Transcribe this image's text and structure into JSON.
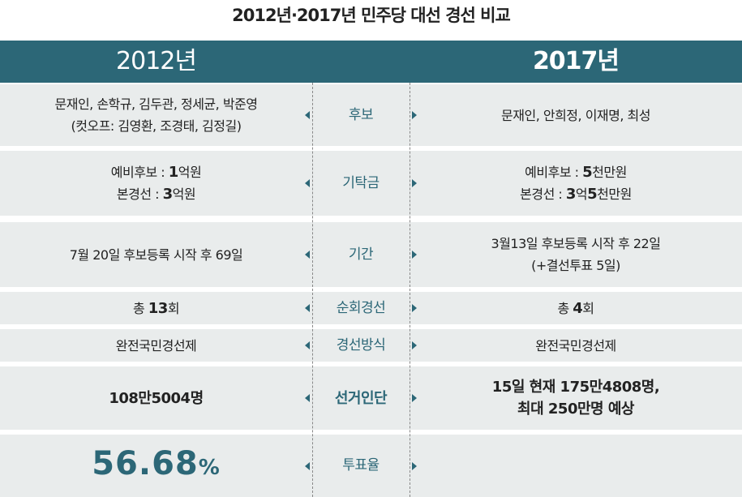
{
  "title": "2012년·2017년 민주당 대선 경선 비교",
  "header": {
    "left": "2012년",
    "right": "2017년"
  },
  "rows": [
    {
      "label": "후보",
      "left": [
        "문재인, 손학규, 김두관, 정세균, 박준영",
        "(컷오프:  김영환, 조경태, 김정길)"
      ],
      "right": [
        "문재인, 안희정, 이재명, 최성"
      ]
    },
    {
      "label": "기탁금",
      "left": [
        "예비후보 :  1억원",
        "본경선 : 3억원"
      ],
      "right": [
        "예비후보 :  5천만원",
        "본경선 : 3억5천만원"
      ],
      "bold_numbers": true
    },
    {
      "label": "기간",
      "left": [
        "7월 20일 후보등록 시작 후 69일"
      ],
      "right": [
        "3월13일 후보등록 시작 후 22일",
        "(+결선투표 5일)"
      ]
    },
    {
      "label": "순회경선",
      "left": [
        "총 13회"
      ],
      "right": [
        "총 4회"
      ],
      "bold_numbers": true
    },
    {
      "label": "경선방식",
      "left": [
        "완전국민경선제"
      ],
      "right": [
        "완전국민경선제"
      ]
    },
    {
      "label": "선거인단",
      "left": [
        "108만5004명"
      ],
      "right": [
        "15일 현재 175만4808명,",
        "최대 250만명 예상"
      ],
      "bold": true
    },
    {
      "label": "투표율",
      "left": [
        "56.68%"
      ],
      "right": [],
      "highlight": true
    }
  ]
}
